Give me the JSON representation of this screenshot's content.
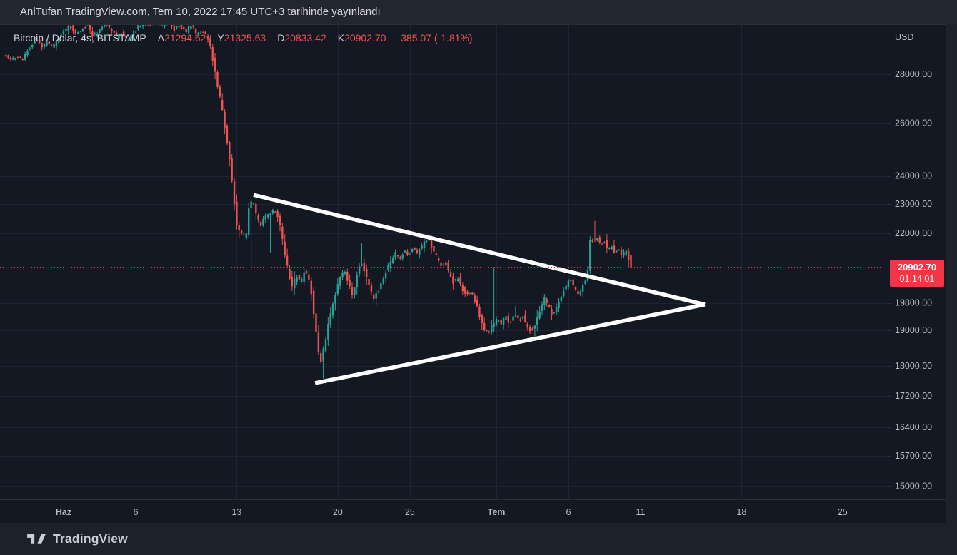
{
  "attribution_bar": {
    "text": "AnlTufan TradingView.com, Tem 10, 2022 17:45 UTC+3 tarihinde yayınlandı"
  },
  "header": {
    "symbol_line": "Bitcoin / Dolar, 4s, BITSTAMP",
    "open_label": "A",
    "open": "21294.62",
    "high_label": "Y",
    "high": "21325.63",
    "low_label": "D",
    "low": "20833.42",
    "close_label": "K",
    "close": "20902.70",
    "change": "-385.07 (-1.81%)"
  },
  "price_axis": {
    "currency": "USD",
    "current_price": "20902.70",
    "countdown": "01:14:01"
  },
  "footer": {
    "brand": "TradingView",
    "logo_icon": "tradingview-logo"
  },
  "chart_data": {
    "type": "candlestick",
    "symbol": "Bitcoin / Dolar",
    "interval": "4s",
    "exchange": "BITSTAMP",
    "price_scale": "log",
    "ohlc": {
      "open": 21294.62,
      "high": 21325.63,
      "low": 20833.42,
      "close": 20902.7,
      "change": -385.07,
      "change_pct": -1.81
    },
    "current_price": 20902.7,
    "countdown": "01:14:01",
    "colors": {
      "up": "#26a69a",
      "down": "#ef5350",
      "price_line": "#f23645",
      "price_tag_bg": "#f23645",
      "grid": "#1d2331",
      "axis_text": "#b8bcc6",
      "trendline": "#ffffff",
      "background": "#141822",
      "pane_border": "#2a2e39"
    },
    "y_ticks": [
      {
        "label": "28000.00",
        "price": 28000
      },
      {
        "label": "26000.00",
        "price": 26000
      },
      {
        "label": "24000.00",
        "price": 24000
      },
      {
        "label": "23000.00",
        "price": 23000
      },
      {
        "label": "22000.00",
        "price": 22000
      },
      {
        "label": "19800.00",
        "price": 19800
      },
      {
        "label": "19000.00",
        "price": 19000
      },
      {
        "label": "18000.00",
        "price": 18000
      },
      {
        "label": "17200.00",
        "price": 17200
      },
      {
        "label": "16400.00",
        "price": 16400
      },
      {
        "label": "15700.00",
        "price": 15700
      },
      {
        "label": "15000.00",
        "price": 15000
      }
    ],
    "x_ticks": [
      {
        "label": "Haz",
        "t": 4,
        "bold": true
      },
      {
        "label": "6",
        "t": 9
      },
      {
        "label": "13",
        "t": 16
      },
      {
        "label": "20",
        "t": 23
      },
      {
        "label": "25",
        "t": 28
      },
      {
        "label": "Tem",
        "t": 34,
        "bold": true
      },
      {
        "label": "6",
        "t": 39
      },
      {
        "label": "11",
        "t": 44
      },
      {
        "label": "18",
        "t": 51
      },
      {
        "label": "25",
        "t": 58
      }
    ],
    "days": 43.5,
    "candle_step_days": 0.1666667,
    "noise_seed": 11,
    "price_path": [
      [
        0,
        28820
      ],
      [
        0.5,
        28640
      ],
      [
        1,
        28760
      ],
      [
        1.35,
        28580
      ],
      [
        1.7,
        29060
      ],
      [
        2,
        29360
      ],
      [
        2.35,
        29520
      ],
      [
        2.7,
        29160
      ],
      [
        3,
        29400
      ],
      [
        3.4,
        29120
      ],
      [
        3.8,
        29560
      ],
      [
        4.2,
        29900
      ],
      [
        4.6,
        30140
      ],
      [
        5,
        29760
      ],
      [
        5.4,
        29960
      ],
      [
        5.8,
        30240
      ],
      [
        6.2,
        29660
      ],
      [
        6.6,
        29900
      ],
      [
        7,
        30290
      ],
      [
        7.4,
        30060
      ],
      [
        7.8,
        29620
      ],
      [
        8.2,
        29850
      ],
      [
        8.6,
        29430
      ],
      [
        9,
        29760
      ],
      [
        9.4,
        30140
      ],
      [
        9.8,
        30390
      ],
      [
        10.2,
        30160
      ],
      [
        10.6,
        30370
      ],
      [
        11,
        30110
      ],
      [
        11.4,
        30290
      ],
      [
        11.8,
        29960
      ],
      [
        12.2,
        30200
      ],
      [
        12.6,
        29860
      ],
      [
        13,
        30140
      ],
      [
        13.4,
        29760
      ],
      [
        13.8,
        29950
      ],
      [
        14.2,
        29560
      ],
      [
        14.5,
        28640
      ],
      [
        14.8,
        27620
      ],
      [
        15.1,
        26700
      ],
      [
        15.4,
        25680
      ],
      [
        15.7,
        24480
      ],
      [
        15.95,
        23300
      ],
      [
        16.15,
        22320
      ],
      [
        16.35,
        22080
      ],
      [
        16.6,
        21900
      ],
      [
        16.85,
        21980
      ],
      [
        17.05,
        23080
      ],
      [
        17.25,
        23120
      ],
      [
        17.5,
        22620
      ],
      [
        17.8,
        22280
      ],
      [
        18.1,
        22560
      ],
      [
        18.45,
        22700
      ],
      [
        18.8,
        22820
      ],
      [
        19.1,
        22420
      ],
      [
        19.4,
        21580
      ],
      [
        19.7,
        20820
      ],
      [
        20,
        20280
      ],
      [
        20.3,
        20640
      ],
      [
        20.6,
        20380
      ],
      [
        20.9,
        20820
      ],
      [
        21.15,
        20540
      ],
      [
        21.35,
        20080
      ],
      [
        21.55,
        19300
      ],
      [
        21.75,
        18700
      ],
      [
        21.95,
        17980
      ],
      [
        22.15,
        18420
      ],
      [
        22.45,
        19020
      ],
      [
        22.75,
        19650
      ],
      [
        23.05,
        20160
      ],
      [
        23.35,
        20580
      ],
      [
        23.65,
        20820
      ],
      [
        23.95,
        20340
      ],
      [
        24.2,
        20040
      ],
      [
        24.5,
        20640
      ],
      [
        24.75,
        21140
      ],
      [
        25.05,
        20760
      ],
      [
        25.35,
        20290
      ],
      [
        25.65,
        19930
      ],
      [
        25.95,
        20160
      ],
      [
        26.25,
        20480
      ],
      [
        26.55,
        20850
      ],
      [
        26.85,
        21090
      ],
      [
        27.15,
        21340
      ],
      [
        27.45,
        21170
      ],
      [
        27.75,
        21410
      ],
      [
        28.05,
        21270
      ],
      [
        28.35,
        21550
      ],
      [
        28.65,
        21330
      ],
      [
        28.95,
        21510
      ],
      [
        29.25,
        21740
      ],
      [
        29.45,
        21860
      ],
      [
        29.7,
        21510
      ],
      [
        30,
        21230
      ],
      [
        30.3,
        20950
      ],
      [
        30.6,
        21070
      ],
      [
        30.9,
        20710
      ],
      [
        31.2,
        20400
      ],
      [
        31.5,
        20540
      ],
      [
        31.8,
        20230
      ],
      [
        32.1,
        20030
      ],
      [
        32.4,
        20170
      ],
      [
        32.7,
        19850
      ],
      [
        33,
        19440
      ],
      [
        33.3,
        19080
      ],
      [
        33.6,
        18840
      ],
      [
        33.9,
        19160
      ],
      [
        34.2,
        19320
      ],
      [
        34.5,
        19180
      ],
      [
        34.8,
        19380
      ],
      [
        35.1,
        19220
      ],
      [
        35.4,
        19440
      ],
      [
        35.7,
        19280
      ],
      [
        36,
        19380
      ],
      [
        36.3,
        19130
      ],
      [
        36.6,
        18930
      ],
      [
        36.9,
        19230
      ],
      [
        37.2,
        19540
      ],
      [
        37.5,
        19940
      ],
      [
        37.8,
        19640
      ],
      [
        38.1,
        19390
      ],
      [
        38.4,
        19720
      ],
      [
        38.7,
        20050
      ],
      [
        39,
        20310
      ],
      [
        39.3,
        20520
      ],
      [
        39.6,
        20190
      ],
      [
        39.9,
        20060
      ],
      [
        40.2,
        20380
      ],
      [
        40.45,
        20560
      ],
      [
        40.68,
        21840
      ],
      [
        40.9,
        21700
      ],
      [
        41.15,
        21890
      ],
      [
        41.4,
        21580
      ],
      [
        41.65,
        21770
      ],
      [
        41.9,
        21460
      ],
      [
        42.15,
        21630
      ],
      [
        42.4,
        21340
      ],
      [
        42.65,
        21500
      ],
      [
        42.9,
        21230
      ],
      [
        43.1,
        21430
      ],
      [
        43.25,
        21294.62
      ],
      [
        43.5,
        20902.7
      ]
    ],
    "spikes": [
      {
        "t": 2.35,
        "high": 29700
      },
      {
        "t": 16.15,
        "low": 21850
      },
      {
        "t": 17.05,
        "low": 20870
      },
      {
        "t": 18.3,
        "low": 21350
      },
      {
        "t": 20.0,
        "low": 20040
      },
      {
        "t": 21.95,
        "low": 17650
      },
      {
        "t": 24.75,
        "high": 21690
      },
      {
        "t": 25.65,
        "low": 19700
      },
      {
        "t": 29.45,
        "high": 21950
      },
      {
        "t": 33.9,
        "high": 20900,
        "low": 18950
      },
      {
        "t": 35.4,
        "high": 19700
      },
      {
        "t": 36.6,
        "low": 18740
      },
      {
        "t": 40.9,
        "high": 22420
      }
    ],
    "trendlines": [
      {
        "name": "upper",
        "t1": 17.17,
        "p1": 23320,
        "t2": 48.45,
        "p2": 19750
      },
      {
        "name": "lower",
        "t1": 21.43,
        "p1": 17535,
        "t2": 48.45,
        "p2": 19750
      }
    ]
  }
}
